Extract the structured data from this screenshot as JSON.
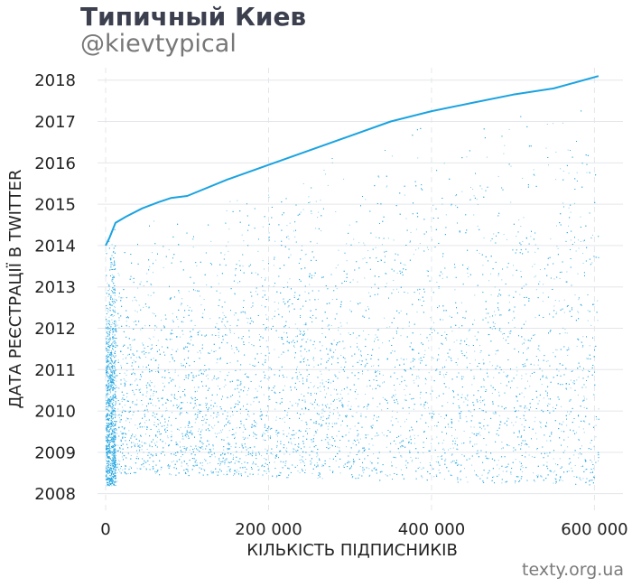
{
  "header": {
    "title": "Типичный Киев",
    "subtitle": "@kievtypical"
  },
  "footer": {
    "credit": "texty.org.ua"
  },
  "colors": {
    "points": "#1aa3e0",
    "grid": "#e3e6ea",
    "text": "#222222",
    "title": "#3b3f4e"
  },
  "chart_data": {
    "type": "scatter",
    "title": "Типичный Киев",
    "subtitle": "@kievtypical",
    "xlabel": "КІЛЬКІСТЬ ПІДПИСНИКІВ",
    "ylabel": "ДАТА РЕЄСТРАЦІЇ В TWITTER",
    "xlim": [
      -10000,
      635000
    ],
    "ylim": [
      2007.6,
      2018.3
    ],
    "x_ticks": [
      0,
      200000,
      400000,
      600000
    ],
    "x_tick_labels": [
      "0",
      "200 000",
      "400 000",
      "600 000"
    ],
    "y_ticks": [
      2008,
      2009,
      2010,
      2011,
      2012,
      2013,
      2014,
      2015,
      2016,
      2017,
      2018
    ],
    "y_tick_labels": [
      "2008",
      "2009",
      "2010",
      "2011",
      "2012",
      "2013",
      "2014",
      "2015",
      "2016",
      "2017",
      "2018"
    ],
    "grid": true,
    "legend": "none",
    "series": [
      {
        "frontier": {
          "x": [
            0,
            5000,
            12000,
            25000,
            45000,
            65000,
            80000,
            100000,
            150000,
            200000,
            250000,
            300000,
            350000,
            400000,
            450000,
            500000,
            550000,
            605000
          ],
          "y": [
            2014.0,
            2014.2,
            2014.55,
            2014.7,
            2014.9,
            2015.05,
            2015.15,
            2015.2,
            2015.6,
            2015.95,
            2016.3,
            2016.65,
            2017.0,
            2017.25,
            2017.45,
            2017.65,
            2017.8,
            2018.1
          ]
        },
        "min_year": 2008.2,
        "point_count": 14000
      }
    ]
  }
}
